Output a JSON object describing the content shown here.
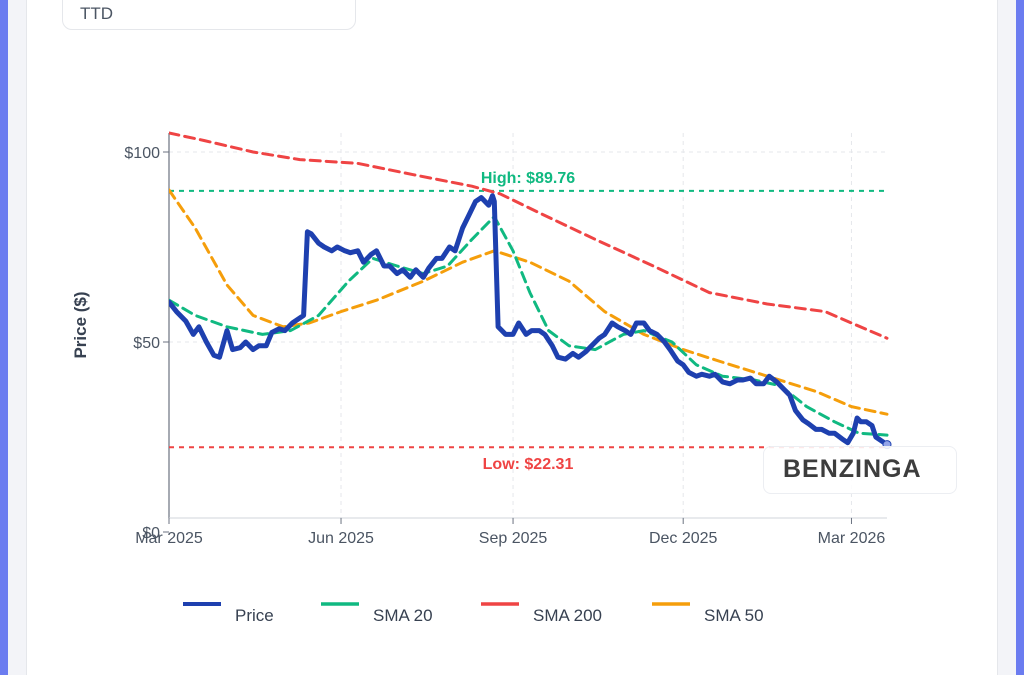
{
  "ticker": "TTD",
  "watermark": "BENZINGA",
  "colors": {
    "price": "#1e40af",
    "sma20": "#10b981",
    "sma200": "#ef4444",
    "sma50": "#f59e0b"
  },
  "chart_data": {
    "type": "line",
    "title": "TTD",
    "xlabel": "",
    "ylabel": "Price ($)",
    "ylim": [
      0,
      105
    ],
    "y_ticks": [
      {
        "v": 0,
        "label": "$0"
      },
      {
        "v": 50,
        "label": "$50"
      },
      {
        "v": 100,
        "label": "$100"
      }
    ],
    "x_range": [
      "2025-03-01",
      "2026-03-20"
    ],
    "x_ticks": [
      {
        "date": "2025-03-01",
        "label": "Mar 2025"
      },
      {
        "date": "2025-06-01",
        "label": "Jun 2025"
      },
      {
        "date": "2025-09-01",
        "label": "Sep 2025"
      },
      {
        "date": "2025-12-01",
        "label": "Dec 2025"
      },
      {
        "date": "2026-03-01",
        "label": "Mar 2026"
      }
    ],
    "high": {
      "value": 89.76,
      "label": "High: $89.76"
    },
    "low": {
      "value": 22.31,
      "label": "Low: $22.31"
    },
    "series": [
      {
        "name": "Price",
        "key": "price",
        "dash": "none",
        "width": 5,
        "points": [
          [
            "2025-03-01",
            60.5
          ],
          [
            "2025-03-05",
            58
          ],
          [
            "2025-03-10",
            55.5
          ],
          [
            "2025-03-14",
            52
          ],
          [
            "2025-03-17",
            54
          ],
          [
            "2025-03-21",
            50
          ],
          [
            "2025-03-25",
            46.5
          ],
          [
            "2025-03-28",
            46
          ],
          [
            "2025-04-01",
            53
          ],
          [
            "2025-04-04",
            48
          ],
          [
            "2025-04-08",
            48.5
          ],
          [
            "2025-04-11",
            50
          ],
          [
            "2025-04-15",
            48
          ],
          [
            "2025-04-18",
            49
          ],
          [
            "2025-04-22",
            49
          ],
          [
            "2025-04-25",
            52.5
          ],
          [
            "2025-04-29",
            53.5
          ],
          [
            "2025-05-02",
            53
          ],
          [
            "2025-05-06",
            55
          ],
          [
            "2025-05-09",
            56
          ],
          [
            "2025-05-12",
            57
          ],
          [
            "2025-05-14",
            79
          ],
          [
            "2025-05-16",
            78.5
          ],
          [
            "2025-05-20",
            76
          ],
          [
            "2025-05-23",
            75
          ],
          [
            "2025-05-27",
            74
          ],
          [
            "2025-05-30",
            75
          ],
          [
            "2025-06-03",
            74
          ],
          [
            "2025-06-06",
            73.5
          ],
          [
            "2025-06-10",
            74
          ],
          [
            "2025-06-13",
            71
          ],
          [
            "2025-06-17",
            73
          ],
          [
            "2025-06-20",
            74
          ],
          [
            "2025-06-24",
            70
          ],
          [
            "2025-06-27",
            70
          ],
          [
            "2025-07-01",
            68
          ],
          [
            "2025-07-04",
            69
          ],
          [
            "2025-07-08",
            67
          ],
          [
            "2025-07-11",
            69
          ],
          [
            "2025-07-15",
            67
          ],
          [
            "2025-07-18",
            69.5
          ],
          [
            "2025-07-22",
            72
          ],
          [
            "2025-07-25",
            72
          ],
          [
            "2025-07-29",
            75
          ],
          [
            "2025-08-01",
            74
          ],
          [
            "2025-08-05",
            80
          ],
          [
            "2025-08-08",
            83
          ],
          [
            "2025-08-12",
            87
          ],
          [
            "2025-08-15",
            88
          ],
          [
            "2025-08-19",
            86
          ],
          [
            "2025-08-21",
            88.5
          ],
          [
            "2025-08-22",
            87
          ],
          [
            "2025-08-24",
            54
          ],
          [
            "2025-08-28",
            52
          ],
          [
            "2025-09-01",
            52
          ],
          [
            "2025-09-04",
            55
          ],
          [
            "2025-09-08",
            52
          ],
          [
            "2025-09-11",
            53
          ],
          [
            "2025-09-15",
            53
          ],
          [
            "2025-09-18",
            52
          ],
          [
            "2025-09-22",
            49
          ],
          [
            "2025-09-25",
            46
          ],
          [
            "2025-09-29",
            45.5
          ],
          [
            "2025-10-03",
            47
          ],
          [
            "2025-10-06",
            46
          ],
          [
            "2025-10-10",
            47.5
          ],
          [
            "2025-10-13",
            49
          ],
          [
            "2025-10-17",
            51
          ],
          [
            "2025-10-20",
            52
          ],
          [
            "2025-10-24",
            55
          ],
          [
            "2025-10-27",
            54
          ],
          [
            "2025-10-31",
            53
          ],
          [
            "2025-11-03",
            52
          ],
          [
            "2025-11-06",
            55
          ],
          [
            "2025-11-10",
            55
          ],
          [
            "2025-11-13",
            53
          ],
          [
            "2025-11-17",
            52
          ],
          [
            "2025-11-21",
            50
          ],
          [
            "2025-11-24",
            48
          ],
          [
            "2025-11-28",
            45
          ],
          [
            "2025-12-01",
            44
          ],
          [
            "2025-12-04",
            42
          ],
          [
            "2025-12-08",
            41
          ],
          [
            "2025-12-11",
            41.5
          ],
          [
            "2025-12-15",
            41
          ],
          [
            "2025-12-18",
            41.5
          ],
          [
            "2025-12-22",
            39.5
          ],
          [
            "2025-12-26",
            39
          ],
          [
            "2025-12-30",
            40
          ],
          [
            "2026-01-02",
            40
          ],
          [
            "2026-01-06",
            40.5
          ],
          [
            "2026-01-09",
            39
          ],
          [
            "2026-01-13",
            39
          ],
          [
            "2026-01-16",
            41
          ],
          [
            "2026-01-20",
            39.5
          ],
          [
            "2026-01-23",
            38
          ],
          [
            "2026-01-27",
            36
          ],
          [
            "2026-01-30",
            32
          ],
          [
            "2026-02-03",
            29.5
          ],
          [
            "2026-02-06",
            28.5
          ],
          [
            "2026-02-10",
            27
          ],
          [
            "2026-02-13",
            27
          ],
          [
            "2026-02-17",
            26
          ],
          [
            "2026-02-20",
            26
          ],
          [
            "2026-02-24",
            24.5
          ],
          [
            "2026-02-27",
            23.5
          ],
          [
            "2026-03-02",
            26
          ],
          [
            "2026-03-04",
            30
          ],
          [
            "2026-03-06",
            29
          ],
          [
            "2026-03-09",
            29
          ],
          [
            "2026-03-12",
            28
          ],
          [
            "2026-03-14",
            25
          ],
          [
            "2026-03-17",
            24
          ],
          [
            "2026-03-20",
            23
          ]
        ]
      },
      {
        "name": "SMA 20",
        "key": "sma20",
        "dash": "10,6",
        "width": 3,
        "points": [
          [
            "2025-03-01",
            61
          ],
          [
            "2025-03-15",
            57
          ],
          [
            "2025-04-01",
            54
          ],
          [
            "2025-04-20",
            52
          ],
          [
            "2025-05-05",
            53
          ],
          [
            "2025-05-20",
            57
          ],
          [
            "2025-06-05",
            66
          ],
          [
            "2025-06-18",
            72
          ],
          [
            "2025-07-01",
            70
          ],
          [
            "2025-07-15",
            68
          ],
          [
            "2025-07-28",
            70
          ],
          [
            "2025-08-10",
            77
          ],
          [
            "2025-08-22",
            83
          ],
          [
            "2025-09-01",
            74
          ],
          [
            "2025-09-10",
            63
          ],
          [
            "2025-09-20",
            53
          ],
          [
            "2025-10-01",
            49
          ],
          [
            "2025-10-15",
            48
          ],
          [
            "2025-10-30",
            52
          ],
          [
            "2025-11-10",
            53
          ],
          [
            "2025-11-25",
            50
          ],
          [
            "2025-12-08",
            44
          ],
          [
            "2025-12-22",
            41
          ],
          [
            "2026-01-08",
            40
          ],
          [
            "2026-01-22",
            38.5
          ],
          [
            "2026-02-05",
            33
          ],
          [
            "2026-02-20",
            29
          ],
          [
            "2026-03-05",
            26
          ],
          [
            "2026-03-20",
            25.5
          ]
        ]
      },
      {
        "name": "SMA 200",
        "key": "sma200",
        "dash": "10,6",
        "width": 3,
        "points": [
          [
            "2025-03-01",
            105
          ],
          [
            "2025-03-20",
            103
          ],
          [
            "2025-04-15",
            100
          ],
          [
            "2025-05-10",
            98
          ],
          [
            "2025-06-10",
            97
          ],
          [
            "2025-07-10",
            94
          ],
          [
            "2025-08-10",
            91
          ],
          [
            "2025-08-25",
            89
          ],
          [
            "2025-09-15",
            84
          ],
          [
            "2025-10-15",
            77
          ],
          [
            "2025-11-15",
            70
          ],
          [
            "2025-12-15",
            63
          ],
          [
            "2026-01-15",
            60
          ],
          [
            "2026-02-15",
            58
          ],
          [
            "2026-03-01",
            55
          ],
          [
            "2026-03-20",
            51
          ]
        ]
      },
      {
        "name": "SMA 50",
        "key": "sma50",
        "dash": "10,6",
        "width": 3,
        "points": [
          [
            "2025-03-01",
            90
          ],
          [
            "2025-03-15",
            80
          ],
          [
            "2025-04-01",
            65
          ],
          [
            "2025-04-15",
            57
          ],
          [
            "2025-05-01",
            54
          ],
          [
            "2025-05-15",
            55
          ],
          [
            "2025-06-01",
            58
          ],
          [
            "2025-06-20",
            61
          ],
          [
            "2025-07-15",
            66
          ],
          [
            "2025-08-05",
            71
          ],
          [
            "2025-08-22",
            74
          ],
          [
            "2025-09-10",
            71
          ],
          [
            "2025-10-01",
            66
          ],
          [
            "2025-10-20",
            58
          ],
          [
            "2025-11-10",
            52
          ],
          [
            "2025-12-01",
            48
          ],
          [
            "2025-12-20",
            45
          ],
          [
            "2026-01-15",
            41
          ],
          [
            "2026-02-10",
            37
          ],
          [
            "2026-03-01",
            33
          ],
          [
            "2026-03-20",
            31
          ]
        ]
      }
    ],
    "legend": [
      {
        "key": "price",
        "label": "Price"
      },
      {
        "key": "sma20",
        "label": "SMA 20"
      },
      {
        "key": "sma200",
        "label": "SMA 200"
      },
      {
        "key": "sma50",
        "label": "SMA 50"
      }
    ],
    "legend_position": "bottom"
  }
}
